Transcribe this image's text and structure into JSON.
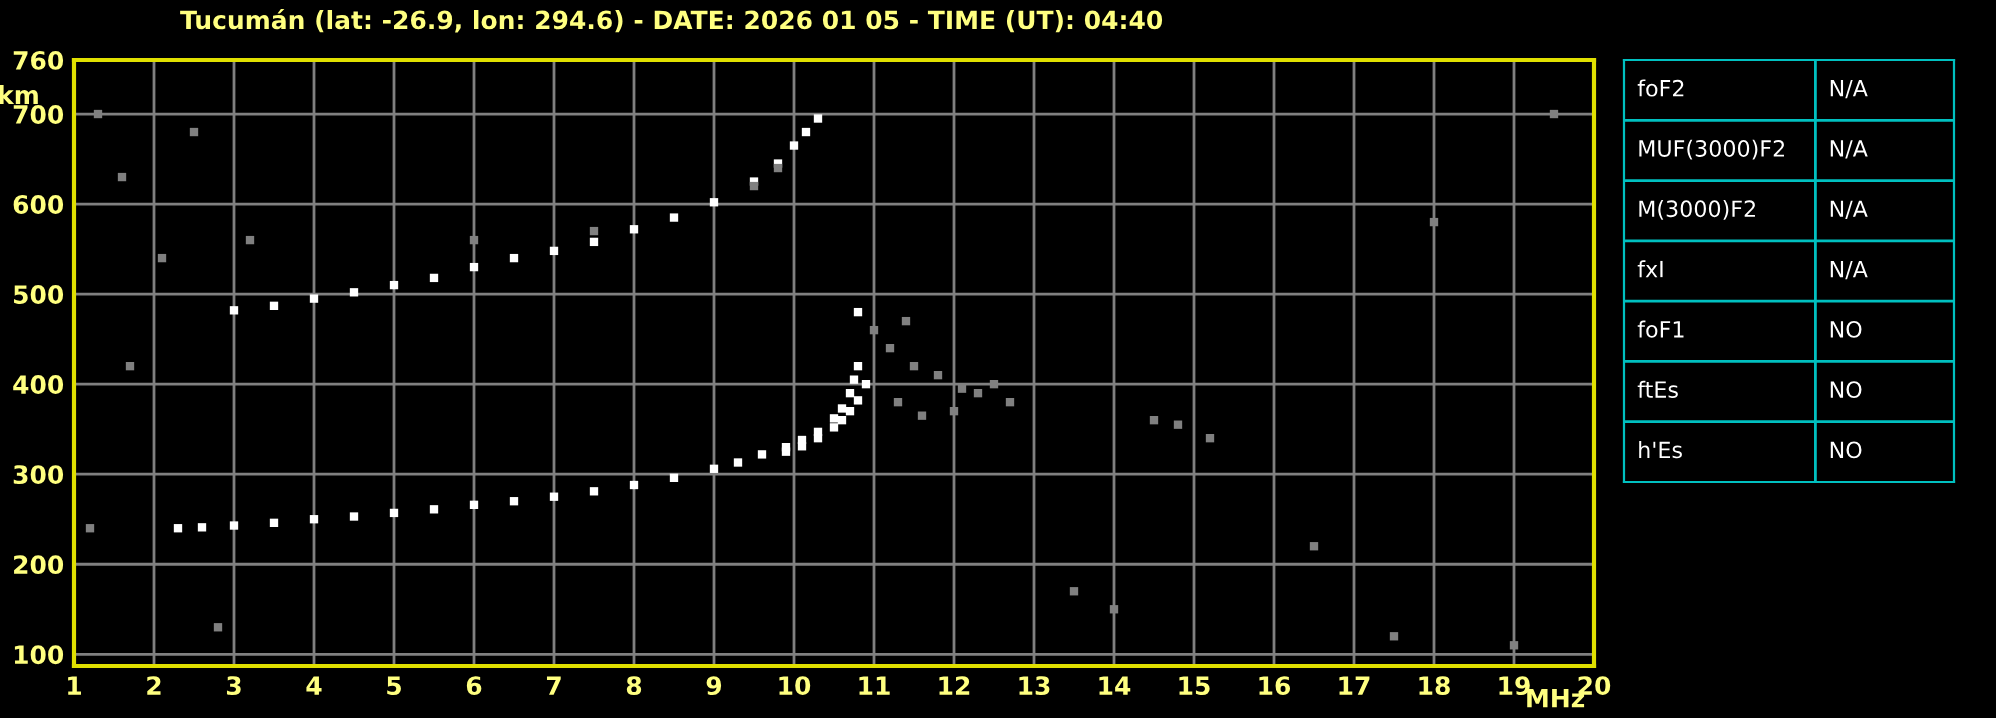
{
  "chart_data": [
    {
      "type": "scatter",
      "title": "Tucumán (lat: -26.9, lon: 294.6) - DATE: 2026 01 05 - TIME (UT): 04:40",
      "xlabel": "MHz",
      "ylabel": "km",
      "marker": "square",
      "grid": true,
      "xlim": [
        1,
        20
      ],
      "xticks": [
        1,
        2,
        3,
        4,
        5,
        6,
        7,
        8,
        9,
        10,
        11,
        12,
        13,
        14,
        15,
        16,
        17,
        18,
        19,
        20
      ],
      "ylim": [
        87,
        760
      ],
      "yticks": [
        100,
        200,
        300,
        400,
        500,
        600,
        700,
        760
      ],
      "series": [
        {
          "color": "#ffffff",
          "x": [
            2.3,
            2.6,
            3,
            3.5,
            4,
            4.5,
            5,
            5.5,
            6,
            6.5,
            7,
            7.5,
            8,
            8.5,
            9,
            9.3,
            9.6,
            9.9,
            10.1,
            10.3,
            10.5,
            10.6,
            10.7,
            10.75,
            10.8,
            10.8
          ],
          "values": [
            240,
            241,
            243,
            246,
            250,
            253,
            257,
            261,
            266,
            270,
            275,
            281,
            288,
            296,
            306,
            313,
            322,
            330,
            338,
            347,
            362,
            373,
            390,
            405,
            420,
            480
          ]
        },
        {
          "color": "#ffffff",
          "x": [
            9.9,
            10.1,
            10.3,
            10.5,
            10.6,
            10.7,
            10.8,
            10.9
          ],
          "values": [
            325,
            331,
            340,
            352,
            360,
            370,
            382,
            400
          ]
        },
        {
          "color": "#ffffff",
          "x": [
            3,
            3.5,
            4,
            4.5,
            5,
            5.5,
            6,
            6.5,
            7,
            7.5,
            8,
            8.5,
            9,
            9.5,
            9.8,
            10,
            10.15,
            10.3
          ],
          "values": [
            482,
            487,
            495,
            502,
            510,
            518,
            530,
            540,
            548,
            558,
            572,
            585,
            602,
            625,
            645,
            665,
            680,
            695
          ]
        },
        {
          "color": "#808080",
          "x": [
            11.2,
            11.5,
            11.8,
            12.1,
            12.3,
            12.5,
            12.7,
            11.3,
            11.6,
            12.0,
            11.0,
            11.4,
            14.5,
            14.8,
            15.2,
            1.3,
            1.6,
            2.5,
            3.2,
            2.1,
            1.7,
            13.5,
            14.0,
            16.5,
            18.0,
            19.5,
            17.5,
            19.0,
            9.5,
            9.8,
            6.0,
            7.5,
            1.2,
            2.8
          ],
          "values": [
            440,
            420,
            410,
            395,
            390,
            400,
            380,
            380,
            365,
            370,
            460,
            470,
            360,
            355,
            340,
            700,
            630,
            680,
            560,
            540,
            420,
            170,
            150,
            220,
            580,
            700,
            120,
            110,
            620,
            640,
            560,
            570,
            240,
            130
          ]
        }
      ]
    },
    {
      "type": "other",
      "annotations": [
        "foF2",
        "N/A",
        "MUF(3000)F2",
        "N/A",
        "M(3000)F2",
        "N/A",
        "fxI",
        "N/A",
        "foF1",
        "NO",
        "ftEs",
        "NO",
        "h'Es",
        "NO"
      ]
    }
  ]
}
